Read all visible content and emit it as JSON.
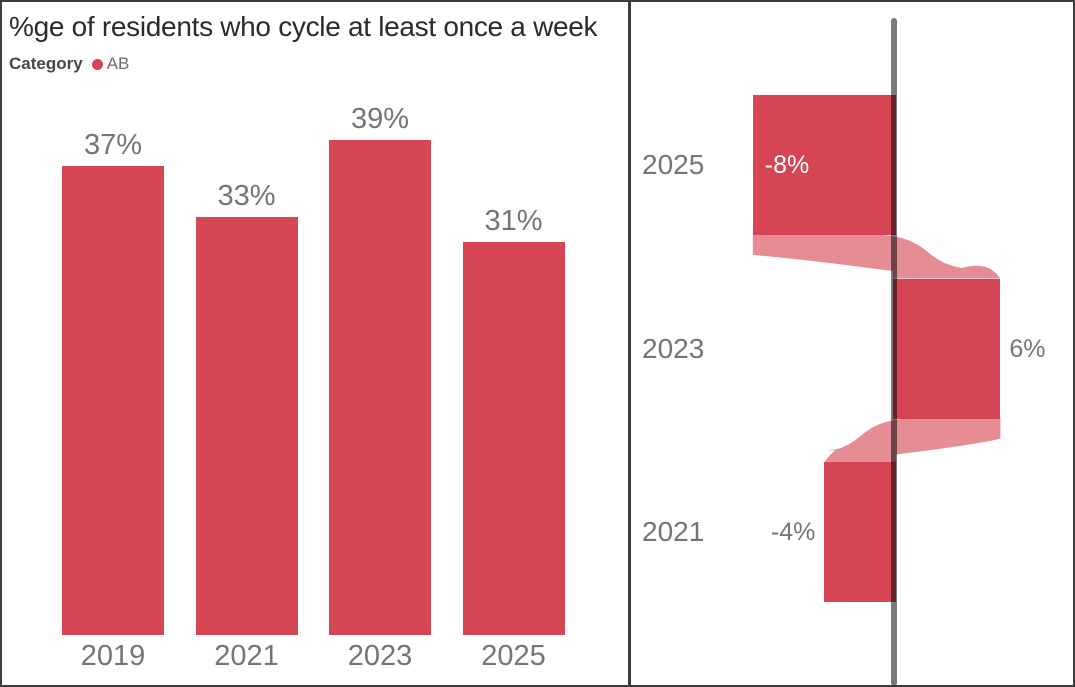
{
  "left_panel": {
    "title": "%ge of residents who cycle at least once a week",
    "legend": {
      "field": "Category",
      "item": "AB"
    }
  },
  "colors": {
    "series_red": "#d64554",
    "ribbon_pink_opacity": 0.62,
    "label_gray": "#757575",
    "title_dark": "#2b2b2b",
    "legend_field_gray": "#474747",
    "legend_item_gray": "#6e6e6e",
    "axis_gray": "#7a7a7a",
    "inside_label_white": "#ffffff",
    "border_dark": "#3c3c3c"
  },
  "chart_data": [
    {
      "type": "bar",
      "title": "%ge of residents who cycle at least once a week",
      "series_name": "AB",
      "legend_title": "Category",
      "legend_position": "top-left",
      "categories": [
        "2019",
        "2021",
        "2023",
        "2025"
      ],
      "values": [
        37,
        33,
        39,
        31
      ],
      "data_labels": [
        "37%",
        "33%",
        "39%",
        "31%"
      ],
      "xlabel": "",
      "ylabel": "",
      "ylim": [
        0,
        42
      ],
      "grid": false
    },
    {
      "type": "bar",
      "subtype": "horizontal-variance-ribbon",
      "categories": [
        "2025",
        "2023",
        "2021"
      ],
      "values": [
        -8,
        6,
        -4
      ],
      "data_labels": [
        "-8%",
        "6%",
        "-4%"
      ],
      "baseline": 0,
      "xlim": [
        -8,
        6
      ],
      "grid": false,
      "legend_position": "none"
    }
  ]
}
